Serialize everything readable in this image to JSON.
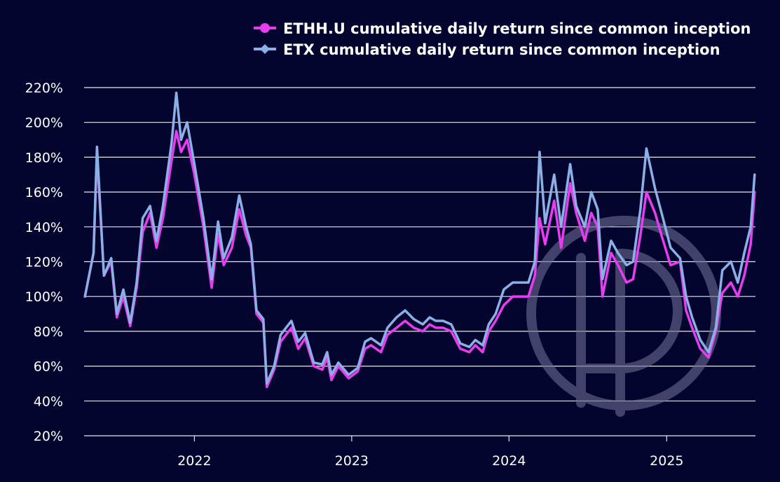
{
  "colors": {
    "background": "#04052e",
    "ethh": "#e83cf0",
    "etx": "#8ab0e6",
    "grid": "#e6e6ee",
    "watermark": "#6a6a92"
  },
  "chart_data": {
    "type": "line",
    "title": "",
    "xlabel": "",
    "ylabel": "",
    "y_unit": "%",
    "ylim": [
      20,
      220
    ],
    "yticks": [
      20,
      40,
      60,
      80,
      100,
      120,
      140,
      160,
      180,
      200,
      220
    ],
    "ytick_labels": [
      "20%",
      "40%",
      "60%",
      "80%",
      "100%",
      "120%",
      "140%",
      "160%",
      "180%",
      "200%",
      "220%"
    ],
    "xlim": [
      "2021-04-20",
      "2025-07-26"
    ],
    "xticks": [
      "2022-01-01",
      "2023-01-01",
      "2024-01-01",
      "2025-01-01"
    ],
    "xtick_labels": [
      "2022",
      "2023",
      "2024",
      "2025"
    ],
    "grid": "horizontal",
    "legend_position": "top-right",
    "series": [
      {
        "name": "ETHH.U cumulative daily return since common inception",
        "marker": "circle",
        "x": [
          "2021-04-22",
          "2021-05-12",
          "2021-05-20",
          "2021-06-05",
          "2021-06-22",
          "2021-07-05",
          "2021-07-20",
          "2021-08-05",
          "2021-08-20",
          "2021-09-03",
          "2021-09-20",
          "2021-10-05",
          "2021-10-20",
          "2021-11-09",
          "2021-11-20",
          "2021-12-01",
          "2021-12-15",
          "2022-01-01",
          "2022-01-22",
          "2022-02-10",
          "2022-02-25",
          "2022-03-10",
          "2022-03-29",
          "2022-04-15",
          "2022-05-01",
          "2022-05-12",
          "2022-05-25",
          "2022-06-10",
          "2022-06-18",
          "2022-07-05",
          "2022-07-20",
          "2022-08-14",
          "2022-08-30",
          "2022-09-15",
          "2022-10-05",
          "2022-10-25",
          "2022-11-05",
          "2022-11-15",
          "2022-12-01",
          "2022-12-25",
          "2023-01-15",
          "2023-02-01",
          "2023-02-15",
          "2023-03-10",
          "2023-03-25",
          "2023-04-15",
          "2023-05-05",
          "2023-05-25",
          "2023-06-15",
          "2023-07-01",
          "2023-07-15",
          "2023-08-01",
          "2023-08-20",
          "2023-09-10",
          "2023-10-01",
          "2023-10-15",
          "2023-11-01",
          "2023-11-15",
          "2023-12-01",
          "2023-12-20",
          "2024-01-10",
          "2024-01-25",
          "2024-02-15",
          "2024-03-01",
          "2024-03-12",
          "2024-03-25",
          "2024-04-15",
          "2024-05-01",
          "2024-05-22",
          "2024-06-05",
          "2024-06-25",
          "2024-07-10",
          "2024-07-25",
          "2024-08-05",
          "2024-08-25",
          "2024-09-10",
          "2024-09-30",
          "2024-10-15",
          "2024-11-01",
          "2024-11-15",
          "2024-12-05",
          "2024-12-20",
          "2025-01-10",
          "2025-02-01",
          "2025-02-15",
          "2025-03-01",
          "2025-03-20",
          "2025-04-08",
          "2025-04-25",
          "2025-05-10",
          "2025-05-30",
          "2025-06-15",
          "2025-06-30",
          "2025-07-15",
          "2025-07-24"
        ],
        "values": [
          100,
          125,
          182,
          112,
          120,
          88,
          100,
          83,
          105,
          137,
          148,
          128,
          145,
          178,
          195,
          183,
          190,
          170,
          140,
          105,
          136,
          118,
          128,
          150,
          135,
          128,
          90,
          85,
          48,
          58,
          74,
          82,
          70,
          76,
          60,
          58,
          65,
          52,
          60,
          53,
          57,
          70,
          72,
          68,
          78,
          82,
          86,
          82,
          80,
          84,
          82,
          82,
          80,
          70,
          68,
          72,
          68,
          80,
          86,
          95,
          100,
          100,
          100,
          112,
          145,
          130,
          155,
          128,
          165,
          148,
          132,
          148,
          140,
          100,
          125,
          118,
          108,
          110,
          135,
          160,
          148,
          135,
          118,
          120,
          92,
          82,
          70,
          65,
          80,
          102,
          108,
          100,
          112,
          130,
          160
        ]
      },
      {
        "name": "ETX cumulative daily return since common inception",
        "marker": "diamond",
        "x": [
          "2021-04-22",
          "2021-05-12",
          "2021-05-20",
          "2021-06-05",
          "2021-06-22",
          "2021-07-05",
          "2021-07-20",
          "2021-08-05",
          "2021-08-20",
          "2021-09-03",
          "2021-09-20",
          "2021-10-05",
          "2021-10-20",
          "2021-11-09",
          "2021-11-20",
          "2021-12-01",
          "2021-12-15",
          "2022-01-01",
          "2022-01-22",
          "2022-02-10",
          "2022-02-25",
          "2022-03-10",
          "2022-03-29",
          "2022-04-15",
          "2022-05-01",
          "2022-05-12",
          "2022-05-25",
          "2022-06-10",
          "2022-06-18",
          "2022-07-05",
          "2022-07-20",
          "2022-08-14",
          "2022-08-30",
          "2022-09-15",
          "2022-10-05",
          "2022-10-25",
          "2022-11-05",
          "2022-11-15",
          "2022-12-01",
          "2022-12-25",
          "2023-01-15",
          "2023-02-01",
          "2023-02-15",
          "2023-03-10",
          "2023-03-25",
          "2023-04-15",
          "2023-05-05",
          "2023-05-25",
          "2023-06-15",
          "2023-07-01",
          "2023-07-15",
          "2023-08-01",
          "2023-08-20",
          "2023-09-10",
          "2023-10-01",
          "2023-10-15",
          "2023-11-01",
          "2023-11-15",
          "2023-12-01",
          "2023-12-20",
          "2024-01-10",
          "2024-01-25",
          "2024-02-15",
          "2024-03-01",
          "2024-03-12",
          "2024-03-25",
          "2024-04-15",
          "2024-05-01",
          "2024-05-22",
          "2024-06-05",
          "2024-06-25",
          "2024-07-10",
          "2024-07-25",
          "2024-08-05",
          "2024-08-25",
          "2024-09-10",
          "2024-09-30",
          "2024-10-15",
          "2024-11-01",
          "2024-11-15",
          "2024-12-05",
          "2024-12-20",
          "2025-01-10",
          "2025-02-01",
          "2025-02-15",
          "2025-03-01",
          "2025-03-20",
          "2025-04-08",
          "2025-04-25",
          "2025-05-10",
          "2025-05-30",
          "2025-06-15",
          "2025-06-30",
          "2025-07-15",
          "2025-07-24"
        ],
        "values": [
          100,
          125,
          186,
          112,
          122,
          90,
          104,
          85,
          108,
          145,
          152,
          132,
          152,
          188,
          217,
          190,
          200,
          176,
          145,
          110,
          143,
          122,
          134,
          158,
          140,
          130,
          92,
          87,
          50,
          60,
          78,
          86,
          74,
          79,
          62,
          61,
          68,
          55,
          62,
          55,
          59,
          74,
          76,
          72,
          82,
          88,
          92,
          87,
          84,
          88,
          86,
          86,
          84,
          73,
          71,
          75,
          72,
          84,
          90,
          104,
          108,
          108,
          108,
          120,
          183,
          142,
          170,
          140,
          176,
          152,
          140,
          160,
          150,
          110,
          132,
          125,
          118,
          120,
          150,
          185,
          162,
          148,
          128,
          122,
          100,
          88,
          75,
          68,
          82,
          115,
          120,
          108,
          125,
          140,
          170
        ]
      }
    ]
  }
}
